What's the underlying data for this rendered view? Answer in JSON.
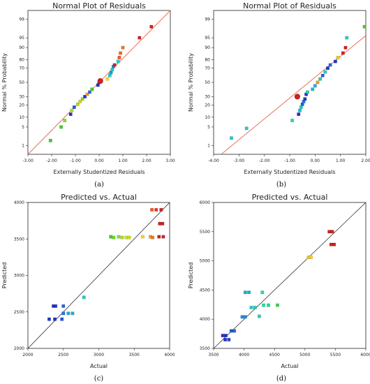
{
  "chart_data": [
    {
      "panel": "a",
      "type": "scatter",
      "title": "Normal Plot of Residuals",
      "xlabel": "Externally Studentized Residuals",
      "ylabel": "Normal % Probability",
      "caption": "(a)",
      "xlim": [
        -3.0,
        3.0
      ],
      "x_ticks": [
        "-3.00",
        "-2.00",
        "-1.00",
        "0.00",
        "1.00",
        "2.00",
        "3.00"
      ],
      "y_ticks": [
        1,
        5,
        10,
        20,
        30,
        50,
        70,
        80,
        90,
        95,
        99
      ],
      "ylim_percent": [
        0.4,
        99.6
      ],
      "reference_line": {
        "from": [
          -3.0,
          0.4
        ],
        "to": [
          3.0,
          99.6
        ]
      },
      "points": [
        {
          "x": -2.05,
          "y": 1.6,
          "color": "#44cc22"
        },
        {
          "x": -1.6,
          "y": 5,
          "color": "#44cc22"
        },
        {
          "x": -1.45,
          "y": 8,
          "color": "#88dd22"
        },
        {
          "x": -1.2,
          "y": 12,
          "color": "#2233cc"
        },
        {
          "x": -1.15,
          "y": 15,
          "color": "#aadd22"
        },
        {
          "x": -1.05,
          "y": 18,
          "color": "#2255dd"
        },
        {
          "x": -0.9,
          "y": 21,
          "color": "#aadd22"
        },
        {
          "x": -0.8,
          "y": 24,
          "color": "#ddcc22"
        },
        {
          "x": -0.7,
          "y": 27,
          "color": "#88dd22"
        },
        {
          "x": -0.6,
          "y": 30,
          "color": "#2233cc"
        },
        {
          "x": -0.5,
          "y": 33,
          "color": "#ee9922"
        },
        {
          "x": -0.4,
          "y": 36,
          "color": "#3366dd"
        },
        {
          "x": -0.3,
          "y": 40,
          "color": "#44cc22"
        },
        {
          "x": -0.05,
          "y": 46,
          "color": "#2233cc"
        },
        {
          "x": 0.0,
          "y": 50,
          "color": "#2233cc"
        },
        {
          "x": 0.05,
          "y": 52,
          "color": "#cc2222",
          "size": 8
        },
        {
          "x": 0.35,
          "y": 55,
          "color": "#ffcc33"
        },
        {
          "x": 0.45,
          "y": 60,
          "color": "#22cccc"
        },
        {
          "x": 0.5,
          "y": 64,
          "color": "#2299dd"
        },
        {
          "x": 0.55,
          "y": 68,
          "color": "#22ccbb"
        },
        {
          "x": 0.6,
          "y": 72,
          "color": "#2288dd"
        },
        {
          "x": 0.65,
          "y": 74,
          "color": "#cc2222"
        },
        {
          "x": 0.8,
          "y": 78,
          "color": "#22cccc"
        },
        {
          "x": 0.85,
          "y": 82,
          "color": "#ee5522"
        },
        {
          "x": 0.9,
          "y": 86,
          "color": "#ee6633"
        },
        {
          "x": 1.0,
          "y": 90,
          "color": "#ee7722"
        },
        {
          "x": 1.7,
          "y": 95,
          "color": "#cc2222"
        },
        {
          "x": 2.2,
          "y": 98,
          "color": "#cc2222"
        }
      ]
    },
    {
      "panel": "b",
      "type": "scatter",
      "title": "Normal Plot of Residuals",
      "xlabel": "Externally Studentized Residuals",
      "ylabel": "Normal % Probability",
      "caption": "(b)",
      "xlim": [
        -4.0,
        2.0
      ],
      "x_ticks": [
        "-4.00",
        "-3.00",
        "-2.00",
        "-1.00",
        "0.00",
        "1.00",
        "2.00"
      ],
      "y_ticks": [
        1,
        5,
        10,
        20,
        30,
        50,
        70,
        80,
        90,
        95,
        99
      ],
      "ylim_percent": [
        0.4,
        99.6
      ],
      "reference_line": {
        "from": [
          -3.7,
          0.4
        ],
        "to": [
          2.2,
          97
        ]
      },
      "points": [
        {
          "x": -3.3,
          "y": 2,
          "color": "#22cccc"
        },
        {
          "x": -2.7,
          "y": 4.5,
          "color": "#22cccc"
        },
        {
          "x": -0.9,
          "y": 8,
          "color": "#22ddaa"
        },
        {
          "x": -0.65,
          "y": 12,
          "color": "#2233cc"
        },
        {
          "x": -0.6,
          "y": 15,
          "color": "#22bbcc"
        },
        {
          "x": -0.55,
          "y": 18,
          "color": "#22ccbb"
        },
        {
          "x": -0.5,
          "y": 21,
          "color": "#3355dd"
        },
        {
          "x": -0.45,
          "y": 24,
          "color": "#2277dd"
        },
        {
          "x": -0.4,
          "y": 27,
          "color": "#2233cc"
        },
        {
          "x": -0.7,
          "y": 30,
          "color": "#cc2222",
          "size": 8
        },
        {
          "x": -0.35,
          "y": 33,
          "color": "#2233cc"
        },
        {
          "x": -0.3,
          "y": 36,
          "color": "#22ccbb"
        },
        {
          "x": -0.1,
          "y": 40,
          "color": "#22bbcc"
        },
        {
          "x": 0.0,
          "y": 45,
          "color": "#33aadd"
        },
        {
          "x": 0.1,
          "y": 50,
          "color": "#ee9922"
        },
        {
          "x": 0.2,
          "y": 55,
          "color": "#22ccbb"
        },
        {
          "x": 0.3,
          "y": 60,
          "color": "#3355dd"
        },
        {
          "x": 0.4,
          "y": 65,
          "color": "#22ccbb"
        },
        {
          "x": 0.5,
          "y": 70,
          "color": "#2233cc"
        },
        {
          "x": 0.6,
          "y": 74,
          "color": "#2266dd"
        },
        {
          "x": 0.8,
          "y": 78,
          "color": "#2233cc"
        },
        {
          "x": 0.9,
          "y": 82,
          "color": "#ddcc22"
        },
        {
          "x": 1.1,
          "y": 86,
          "color": "#cc2222"
        },
        {
          "x": 1.2,
          "y": 90,
          "color": "#cc2222"
        },
        {
          "x": 1.25,
          "y": 95,
          "color": "#22cccc"
        },
        {
          "x": 1.95,
          "y": 98,
          "color": "#44cc22"
        }
      ]
    },
    {
      "panel": "c",
      "type": "scatter",
      "title": "Predicted vs. Actual",
      "xlabel": "Actual",
      "ylabel": "Predicted",
      "caption": "(c)",
      "xlim": [
        2000,
        4000
      ],
      "ylim": [
        2000,
        4000
      ],
      "x_ticks": [
        "2000",
        "2500",
        "3000",
        "3500",
        "4000"
      ],
      "y_ticks": [
        "2000",
        "2500",
        "3000",
        "3500",
        "4000"
      ],
      "reference_line": {
        "from": [
          2000,
          2000
        ],
        "to": [
          4000,
          4000
        ]
      },
      "points": [
        {
          "x": 2300,
          "y": 2400,
          "color": "#2233cc"
        },
        {
          "x": 2380,
          "y": 2400,
          "color": "#2233cc"
        },
        {
          "x": 2480,
          "y": 2400,
          "color": "#2255dd"
        },
        {
          "x": 2360,
          "y": 2580,
          "color": "#2233cc"
        },
        {
          "x": 2390,
          "y": 2580,
          "color": "#2233cc"
        },
        {
          "x": 2500,
          "y": 2580,
          "color": "#2266dd"
        },
        {
          "x": 2500,
          "y": 2480,
          "color": "#2277dd"
        },
        {
          "x": 2570,
          "y": 2480,
          "color": "#22aacc"
        },
        {
          "x": 2630,
          "y": 2480,
          "color": "#22aacc"
        },
        {
          "x": 2790,
          "y": 2700,
          "color": "#22ccbb"
        },
        {
          "x": 3170,
          "y": 3530,
          "color": "#44cc22"
        },
        {
          "x": 3210,
          "y": 3520,
          "color": "#66dd22"
        },
        {
          "x": 3280,
          "y": 3530,
          "color": "#88dd22"
        },
        {
          "x": 3330,
          "y": 3520,
          "color": "#aadd22"
        },
        {
          "x": 3390,
          "y": 3520,
          "color": "#ccdd22"
        },
        {
          "x": 3430,
          "y": 3520,
          "color": "#ccdd22"
        },
        {
          "x": 3620,
          "y": 3530,
          "color": "#ffcc33"
        },
        {
          "x": 3730,
          "y": 3530,
          "color": "#ee9922"
        },
        {
          "x": 3760,
          "y": 3520,
          "color": "#ee7722"
        },
        {
          "x": 3850,
          "y": 3530,
          "color": "#cc2222"
        },
        {
          "x": 3910,
          "y": 3530,
          "color": "#cc2222"
        },
        {
          "x": 3860,
          "y": 3710,
          "color": "#cc2222"
        },
        {
          "x": 3900,
          "y": 3710,
          "color": "#cc2222"
        },
        {
          "x": 3750,
          "y": 3900,
          "color": "#ee5522"
        },
        {
          "x": 3810,
          "y": 3900,
          "color": "#ee3322"
        },
        {
          "x": 3880,
          "y": 3900,
          "color": "#cc2222"
        }
      ]
    },
    {
      "panel": "d",
      "type": "scatter",
      "title": "Predicted vs. Actual",
      "xlabel": "Actual",
      "ylabel": "Predicted",
      "caption": "(d)",
      "xlim": [
        3500,
        6000
      ],
      "ylim": [
        3500,
        6000
      ],
      "x_ticks": [
        "3500",
        "4000",
        "4500",
        "5000",
        "5500",
        "6000"
      ],
      "y_ticks": [
        "3500",
        "4000",
        "4500",
        "5000",
        "5500",
        "6000"
      ],
      "reference_line": {
        "from": [
          3500,
          3500
        ],
        "to": [
          6000,
          6000
        ]
      },
      "points": [
        {
          "x": 3650,
          "y": 3720,
          "color": "#2233cc"
        },
        {
          "x": 3700,
          "y": 3720,
          "color": "#2233cc"
        },
        {
          "x": 3690,
          "y": 3650,
          "color": "#2233cc"
        },
        {
          "x": 3750,
          "y": 3650,
          "color": "#2244cc"
        },
        {
          "x": 3790,
          "y": 3800,
          "color": "#2255dd"
        },
        {
          "x": 3840,
          "y": 3800,
          "color": "#2266dd"
        },
        {
          "x": 3970,
          "y": 4040,
          "color": "#2288dd"
        },
        {
          "x": 4020,
          "y": 4040,
          "color": "#2288dd"
        },
        {
          "x": 4020,
          "y": 4460,
          "color": "#22aacc"
        },
        {
          "x": 4080,
          "y": 4460,
          "color": "#22aacc"
        },
        {
          "x": 4120,
          "y": 4200,
          "color": "#22ccbb"
        },
        {
          "x": 4180,
          "y": 4200,
          "color": "#22ccbb"
        },
        {
          "x": 4250,
          "y": 4050,
          "color": "#22ccbb"
        },
        {
          "x": 4300,
          "y": 4460,
          "color": "#22ddaa"
        },
        {
          "x": 4320,
          "y": 4240,
          "color": "#22dd99"
        },
        {
          "x": 4400,
          "y": 4240,
          "color": "#22dd88"
        },
        {
          "x": 4550,
          "y": 4240,
          "color": "#44cc55"
        },
        {
          "x": 5060,
          "y": 5060,
          "color": "#ddcc22"
        },
        {
          "x": 5100,
          "y": 5060,
          "color": "#ffcc33"
        },
        {
          "x": 5400,
          "y": 5500,
          "color": "#cc2222"
        },
        {
          "x": 5450,
          "y": 5500,
          "color": "#cc2222"
        },
        {
          "x": 5430,
          "y": 5280,
          "color": "#cc2222"
        },
        {
          "x": 5480,
          "y": 5280,
          "color": "#cc2222"
        }
      ]
    }
  ]
}
